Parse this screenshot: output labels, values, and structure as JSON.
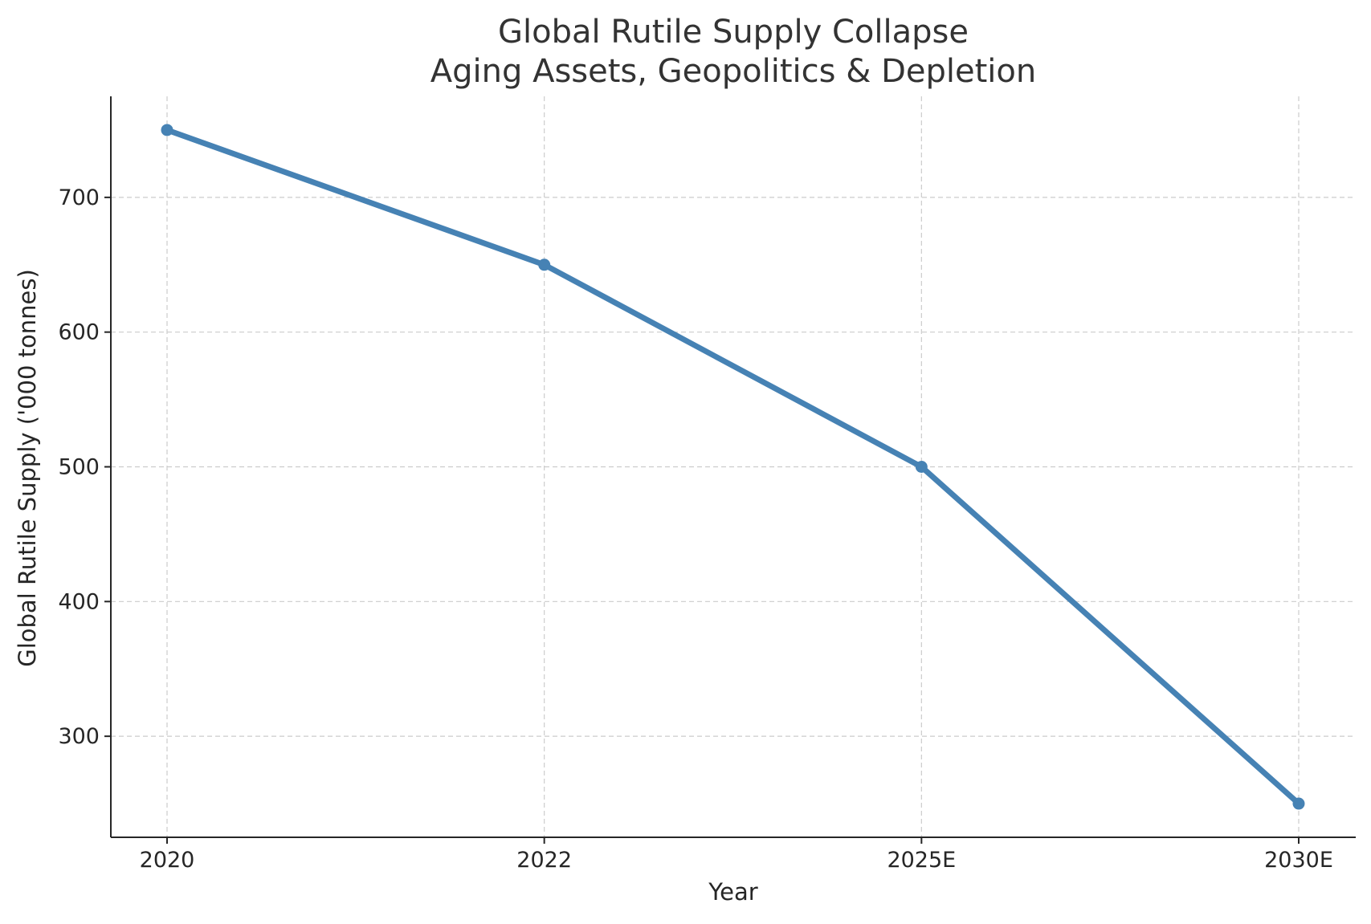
{
  "chart_data": {
    "type": "line",
    "title": "Global Rutile Supply Collapse",
    "subtitle": "Aging Assets, Geopolitics & Depletion",
    "xlabel": "Year",
    "ylabel": "Global Rutile Supply ('000 tonnes)",
    "categories": [
      "2020",
      "2022",
      "2025E",
      "2030E"
    ],
    "series": [
      {
        "values": [
          750,
          650,
          500,
          250
        ],
        "color": "#4682b4"
      }
    ],
    "ylim": [
      225,
      775
    ],
    "yticks": [
      300,
      400,
      500,
      600,
      700
    ],
    "grid": true,
    "grid_style": "dashed"
  }
}
